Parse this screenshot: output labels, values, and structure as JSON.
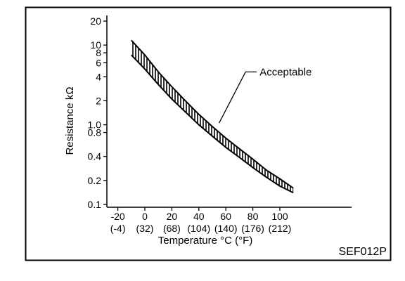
{
  "chart_data": {
    "type": "area",
    "title": "",
    "xlabel": "Temperature °C (°F)",
    "ylabel": "Resistance kΩ",
    "x_ticks": [
      {
        "value": -20,
        "label": "-20",
        "sublabel": "(-4)"
      },
      {
        "value": 0,
        "label": "0",
        "sublabel": "(32)"
      },
      {
        "value": 20,
        "label": "20",
        "sublabel": "(68)"
      },
      {
        "value": 40,
        "label": "40",
        "sublabel": "(104)"
      },
      {
        "value": 60,
        "label": "60",
        "sublabel": "(140)"
      },
      {
        "value": 80,
        "label": "80",
        "sublabel": "(176)"
      },
      {
        "value": 100,
        "label": "100",
        "sublabel": "(212)"
      }
    ],
    "y_ticks": [
      {
        "value": 20,
        "label": "20"
      },
      {
        "value": 10,
        "label": "10"
      },
      {
        "value": 8,
        "label": "8"
      },
      {
        "value": 6,
        "label": "6"
      },
      {
        "value": 4,
        "label": "4"
      },
      {
        "value": 2,
        "label": "2"
      },
      {
        "value": 1.0,
        "label": "1.0"
      },
      {
        "value": 0.8,
        "label": "0.8"
      },
      {
        "value": 0.4,
        "label": "0.4"
      },
      {
        "value": 0.2,
        "label": "0.2"
      },
      {
        "value": 0.1,
        "label": "0.1"
      }
    ],
    "y_scale": "log",
    "ylim": [
      0.1,
      20
    ],
    "xlim": [
      -25,
      125
    ],
    "grid": false,
    "series": [
      {
        "name": "Acceptable",
        "x": [
          -10,
          0,
          10,
          20,
          30,
          40,
          50,
          60,
          70,
          80,
          90,
          100,
          110
        ],
        "upper": [
          11.5,
          7.5,
          4.6,
          3.0,
          2.0,
          1.35,
          0.95,
          0.68,
          0.5,
          0.37,
          0.27,
          0.21,
          0.16
        ],
        "lower": [
          7.5,
          5.0,
          3.2,
          2.1,
          1.45,
          1.0,
          0.72,
          0.52,
          0.39,
          0.29,
          0.22,
          0.17,
          0.14
        ]
      }
    ],
    "annotations": [
      {
        "text": "Acceptable",
        "x": 85,
        "y": 4.6,
        "points_to": {
          "x": 55,
          "y": 1.05
        }
      }
    ],
    "figure_code": "SEF012P"
  }
}
